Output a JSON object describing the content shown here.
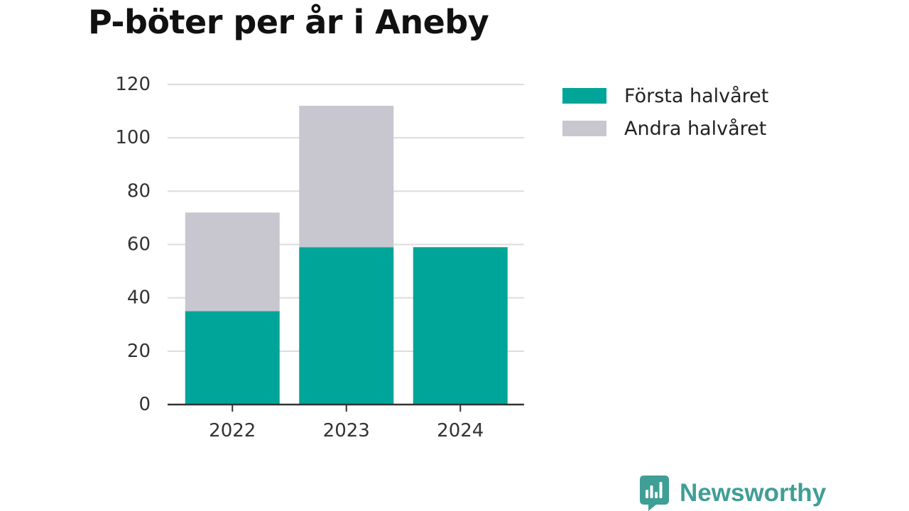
{
  "chart_data": {
    "type": "bar",
    "stacked": true,
    "title": "P-böter per år i Aneby",
    "xlabel": "",
    "ylabel": "",
    "categories": [
      "2022",
      "2023",
      "2024"
    ],
    "series": [
      {
        "name": "Första halvåret",
        "values": [
          35,
          59,
          59
        ],
        "color": "#00a599"
      },
      {
        "name": "Andra halvåret",
        "values": [
          37,
          53,
          0
        ],
        "color": "#c8c7cf"
      }
    ],
    "ylim": [
      0,
      120
    ],
    "yticks": [
      "0",
      "20",
      "40",
      "60",
      "80",
      "100",
      "120"
    ],
    "grid": true,
    "legend_position": "right"
  },
  "brand": {
    "name": "Newsworthy",
    "color": "#3f9e96",
    "icon": "newsworthy-logo-icon"
  }
}
